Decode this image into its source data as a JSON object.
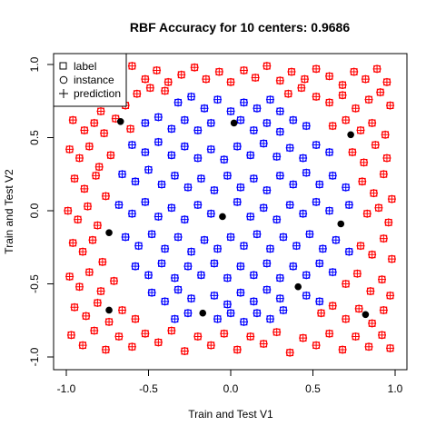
{
  "chart_data": {
    "type": "scatter",
    "title": "RBF Accuracy for 10 centers: 0.9686",
    "xlabel": "Train and Test V1",
    "ylabel": "Train and Test V2",
    "xlim": [
      -1.0,
      1.0
    ],
    "ylim": [
      -1.0,
      1.0
    ],
    "xticks": [
      -1.0,
      -0.5,
      0.0,
      0.5,
      1.0
    ],
    "yticks": [
      -1.0,
      -0.5,
      0.0,
      0.5,
      1.0
    ],
    "xtick_labels": [
      "-1.0",
      "-0.5",
      "0.0",
      "0.5",
      "1.0"
    ],
    "ytick_labels": [
      "-1.0",
      "-0.5",
      "0.0",
      "0.5",
      "1.0"
    ],
    "grid": false,
    "legend": {
      "position": "top-left",
      "entries": [
        {
          "label": "label",
          "symbol": "square"
        },
        {
          "label": "instance",
          "symbol": "circle"
        },
        {
          "label": "prediction",
          "symbol": "plus"
        }
      ]
    },
    "colors": {
      "outer_class": "#ff0000",
      "inner_class": "#0000ff",
      "centers": "#000000"
    },
    "centers": [
      {
        "x": -0.67,
        "y": 0.61
      },
      {
        "x": 0.02,
        "y": 0.6
      },
      {
        "x": 0.73,
        "y": 0.52
      },
      {
        "x": -0.74,
        "y": -0.15
      },
      {
        "x": -0.05,
        "y": -0.04
      },
      {
        "x": 0.67,
        "y": -0.09
      },
      {
        "x": -0.74,
        "y": -0.68
      },
      {
        "x": -0.17,
        "y": -0.7
      },
      {
        "x": 0.41,
        "y": -0.52
      },
      {
        "x": 0.82,
        "y": -0.71
      }
    ],
    "series": [
      {
        "class": "outer",
        "color": "#ff0000",
        "points": [
          [
            -0.95,
            0.92
          ],
          [
            -0.9,
            0.97
          ],
          [
            -0.82,
            0.88
          ],
          [
            -0.76,
            0.95
          ],
          [
            -0.68,
            0.91
          ],
          [
            -0.6,
            0.99
          ],
          [
            -0.52,
            0.9
          ],
          [
            -0.45,
            0.96
          ],
          [
            -0.38,
            0.88
          ],
          [
            -0.3,
            0.93
          ],
          [
            -0.22,
            0.98
          ],
          [
            -0.15,
            0.9
          ],
          [
            -0.07,
            0.95
          ],
          [
            0.0,
            0.88
          ],
          [
            0.08,
            0.96
          ],
          [
            0.15,
            0.91
          ],
          [
            0.22,
            0.99
          ],
          [
            0.3,
            0.89
          ],
          [
            0.37,
            0.95
          ],
          [
            0.45,
            0.9
          ],
          [
            0.52,
            0.97
          ],
          [
            0.6,
            0.92
          ],
          [
            0.68,
            0.86
          ],
          [
            0.75,
            0.95
          ],
          [
            0.82,
            0.9
          ],
          [
            0.89,
            0.97
          ],
          [
            0.95,
            0.88
          ],
          [
            -0.97,
            0.8
          ],
          [
            -0.91,
            0.74
          ],
          [
            -0.85,
            0.81
          ],
          [
            -0.79,
            0.68
          ],
          [
            -0.72,
            0.75
          ],
          [
            -0.64,
            0.72
          ],
          [
            -0.57,
            0.8
          ],
          [
            -0.49,
            0.84
          ],
          [
            -0.4,
            0.82
          ],
          [
            0.35,
            0.8
          ],
          [
            0.43,
            0.84
          ],
          [
            0.52,
            0.78
          ],
          [
            0.6,
            0.74
          ],
          [
            0.68,
            0.79
          ],
          [
            0.76,
            0.7
          ],
          [
            0.84,
            0.76
          ],
          [
            0.91,
            0.81
          ],
          [
            0.97,
            0.72
          ],
          [
            -0.96,
            0.62
          ],
          [
            -0.89,
            0.55
          ],
          [
            -0.83,
            0.6
          ],
          [
            -0.77,
            0.53
          ],
          [
            -0.7,
            0.63
          ],
          [
            -0.61,
            0.56
          ],
          [
            0.62,
            0.58
          ],
          [
            0.7,
            0.62
          ],
          [
            0.79,
            0.55
          ],
          [
            0.86,
            0.6
          ],
          [
            0.94,
            0.52
          ],
          [
            -0.98,
            0.42
          ],
          [
            -0.92,
            0.36
          ],
          [
            -0.86,
            0.44
          ],
          [
            -0.8,
            0.3
          ],
          [
            -0.73,
            0.38
          ],
          [
            0.74,
            0.4
          ],
          [
            0.81,
            0.33
          ],
          [
            0.88,
            0.45
          ],
          [
            0.95,
            0.36
          ],
          [
            -0.95,
            0.22
          ],
          [
            -0.89,
            0.15
          ],
          [
            -0.82,
            0.24
          ],
          [
            -0.76,
            0.1
          ],
          [
            0.8,
            0.2
          ],
          [
            0.87,
            0.12
          ],
          [
            0.93,
            0.25
          ],
          [
            0.98,
            0.08
          ],
          [
            -0.99,
            0.0
          ],
          [
            -0.93,
            -0.06
          ],
          [
            -0.87,
            0.03
          ],
          [
            -0.81,
            -0.1
          ],
          [
            0.83,
            -0.02
          ],
          [
            0.9,
            0.02
          ],
          [
            0.96,
            -0.08
          ],
          [
            -0.96,
            -0.22
          ],
          [
            -0.9,
            -0.28
          ],
          [
            -0.84,
            -0.2
          ],
          [
            -0.78,
            -0.35
          ],
          [
            0.79,
            -0.24
          ],
          [
            0.86,
            -0.3
          ],
          [
            0.93,
            -0.19
          ],
          [
            0.98,
            -0.33
          ],
          [
            -0.98,
            -0.45
          ],
          [
            -0.92,
            -0.52
          ],
          [
            -0.86,
            -0.42
          ],
          [
            -0.79,
            -0.55
          ],
          [
            -0.71,
            -0.48
          ],
          [
            0.7,
            -0.5
          ],
          [
            0.77,
            -0.43
          ],
          [
            0.85,
            -0.55
          ],
          [
            0.92,
            -0.47
          ],
          [
            0.97,
            -0.58
          ],
          [
            -0.95,
            -0.66
          ],
          [
            -0.88,
            -0.72
          ],
          [
            -0.81,
            -0.63
          ],
          [
            -0.74,
            -0.76
          ],
          [
            -0.66,
            -0.68
          ],
          [
            -0.58,
            -0.74
          ],
          [
            0.55,
            -0.7
          ],
          [
            0.62,
            -0.65
          ],
          [
            0.7,
            -0.74
          ],
          [
            0.78,
            -0.67
          ],
          [
            0.86,
            -0.77
          ],
          [
            0.93,
            -0.68
          ],
          [
            -0.97,
            -0.85
          ],
          [
            -0.9,
            -0.92
          ],
          [
            -0.83,
            -0.82
          ],
          [
            -0.76,
            -0.95
          ],
          [
            -0.68,
            -0.86
          ],
          [
            -0.6,
            -0.93
          ],
          [
            -0.52,
            -0.84
          ],
          [
            -0.44,
            -0.9
          ],
          [
            -0.36,
            -0.82
          ],
          [
            -0.28,
            -0.96
          ],
          [
            -0.2,
            -0.86
          ],
          [
            -0.12,
            -0.92
          ],
          [
            -0.04,
            -0.84
          ],
          [
            0.04,
            -0.95
          ],
          [
            0.12,
            -0.86
          ],
          [
            0.2,
            -0.91
          ],
          [
            0.28,
            -0.83
          ],
          [
            0.36,
            -0.97
          ],
          [
            0.44,
            -0.87
          ],
          [
            0.52,
            -0.92
          ],
          [
            0.6,
            -0.84
          ],
          [
            0.68,
            -0.95
          ],
          [
            0.76,
            -0.86
          ],
          [
            0.84,
            -0.93
          ],
          [
            0.92,
            -0.85
          ],
          [
            0.97,
            -0.94
          ]
        ]
      },
      {
        "class": "inner",
        "color": "#0000ff",
        "points": [
          [
            -0.32,
            0.74
          ],
          [
            -0.24,
            0.78
          ],
          [
            -0.16,
            0.7
          ],
          [
            -0.08,
            0.76
          ],
          [
            0.0,
            0.68
          ],
          [
            0.08,
            0.74
          ],
          [
            0.16,
            0.7
          ],
          [
            0.24,
            0.76
          ],
          [
            0.3,
            0.68
          ],
          [
            -0.52,
            0.6
          ],
          [
            -0.44,
            0.64
          ],
          [
            -0.36,
            0.56
          ],
          [
            -0.28,
            0.62
          ],
          [
            -0.2,
            0.55
          ],
          [
            -0.12,
            0.6
          ],
          [
            0.06,
            0.62
          ],
          [
            0.14,
            0.55
          ],
          [
            0.22,
            0.6
          ],
          [
            0.3,
            0.54
          ],
          [
            0.38,
            0.62
          ],
          [
            0.46,
            0.58
          ],
          [
            -0.6,
            0.45
          ],
          [
            -0.52,
            0.4
          ],
          [
            -0.44,
            0.47
          ],
          [
            -0.36,
            0.38
          ],
          [
            -0.28,
            0.44
          ],
          [
            -0.2,
            0.36
          ],
          [
            -0.12,
            0.42
          ],
          [
            -0.04,
            0.35
          ],
          [
            0.04,
            0.44
          ],
          [
            0.12,
            0.38
          ],
          [
            0.2,
            0.46
          ],
          [
            0.28,
            0.37
          ],
          [
            0.36,
            0.43
          ],
          [
            0.44,
            0.36
          ],
          [
            0.52,
            0.45
          ],
          [
            0.6,
            0.4
          ],
          [
            -0.66,
            0.25
          ],
          [
            -0.58,
            0.2
          ],
          [
            -0.5,
            0.28
          ],
          [
            -0.42,
            0.18
          ],
          [
            -0.34,
            0.24
          ],
          [
            -0.26,
            0.16
          ],
          [
            -0.18,
            0.22
          ],
          [
            -0.1,
            0.14
          ],
          [
            -0.02,
            0.24
          ],
          [
            0.06,
            0.16
          ],
          [
            0.14,
            0.22
          ],
          [
            0.22,
            0.14
          ],
          [
            0.3,
            0.24
          ],
          [
            0.38,
            0.18
          ],
          [
            0.46,
            0.26
          ],
          [
            0.54,
            0.18
          ],
          [
            0.62,
            0.24
          ],
          [
            0.7,
            0.16
          ],
          [
            -0.68,
            0.04
          ],
          [
            -0.6,
            -0.02
          ],
          [
            -0.52,
            0.06
          ],
          [
            -0.44,
            -0.04
          ],
          [
            -0.36,
            0.02
          ],
          [
            -0.28,
            -0.06
          ],
          [
            -0.2,
            0.04
          ],
          [
            -0.12,
            -0.02
          ],
          [
            0.04,
            0.06
          ],
          [
            0.12,
            -0.04
          ],
          [
            0.2,
            0.02
          ],
          [
            0.28,
            -0.06
          ],
          [
            0.36,
            0.04
          ],
          [
            0.44,
            -0.02
          ],
          [
            0.52,
            0.06
          ],
          [
            0.6,
            0.0
          ],
          [
            0.72,
            0.04
          ],
          [
            -0.64,
            -0.18
          ],
          [
            -0.56,
            -0.24
          ],
          [
            -0.48,
            -0.16
          ],
          [
            -0.4,
            -0.26
          ],
          [
            -0.32,
            -0.18
          ],
          [
            -0.24,
            -0.28
          ],
          [
            -0.16,
            -0.2
          ],
          [
            -0.08,
            -0.26
          ],
          [
            0.0,
            -0.18
          ],
          [
            0.08,
            -0.24
          ],
          [
            0.16,
            -0.16
          ],
          [
            0.24,
            -0.26
          ],
          [
            0.32,
            -0.18
          ],
          [
            0.4,
            -0.24
          ],
          [
            0.48,
            -0.16
          ],
          [
            0.56,
            -0.26
          ],
          [
            0.64,
            -0.2
          ],
          [
            0.72,
            -0.28
          ],
          [
            -0.58,
            -0.38
          ],
          [
            -0.5,
            -0.44
          ],
          [
            -0.42,
            -0.36
          ],
          [
            -0.34,
            -0.46
          ],
          [
            -0.26,
            -0.38
          ],
          [
            -0.18,
            -0.44
          ],
          [
            -0.1,
            -0.36
          ],
          [
            -0.02,
            -0.46
          ],
          [
            0.06,
            -0.38
          ],
          [
            0.14,
            -0.44
          ],
          [
            0.22,
            -0.36
          ],
          [
            0.3,
            -0.46
          ],
          [
            0.38,
            -0.38
          ],
          [
            0.46,
            -0.44
          ],
          [
            0.54,
            -0.36
          ],
          [
            0.62,
            -0.42
          ],
          [
            -0.48,
            -0.56
          ],
          [
            -0.4,
            -0.62
          ],
          [
            -0.32,
            -0.54
          ],
          [
            -0.24,
            -0.6
          ],
          [
            -0.1,
            -0.58
          ],
          [
            -0.02,
            -0.64
          ],
          [
            0.06,
            -0.56
          ],
          [
            0.14,
            -0.62
          ],
          [
            0.22,
            -0.54
          ],
          [
            0.3,
            -0.6
          ],
          [
            0.46,
            -0.58
          ],
          [
            0.54,
            -0.62
          ],
          [
            -0.34,
            -0.74
          ],
          [
            -0.26,
            -0.7
          ],
          [
            -0.08,
            -0.74
          ],
          [
            0.0,
            -0.7
          ],
          [
            0.08,
            -0.76
          ],
          [
            0.16,
            -0.7
          ],
          [
            0.24,
            -0.74
          ],
          [
            0.32,
            -0.68
          ]
        ]
      }
    ]
  }
}
